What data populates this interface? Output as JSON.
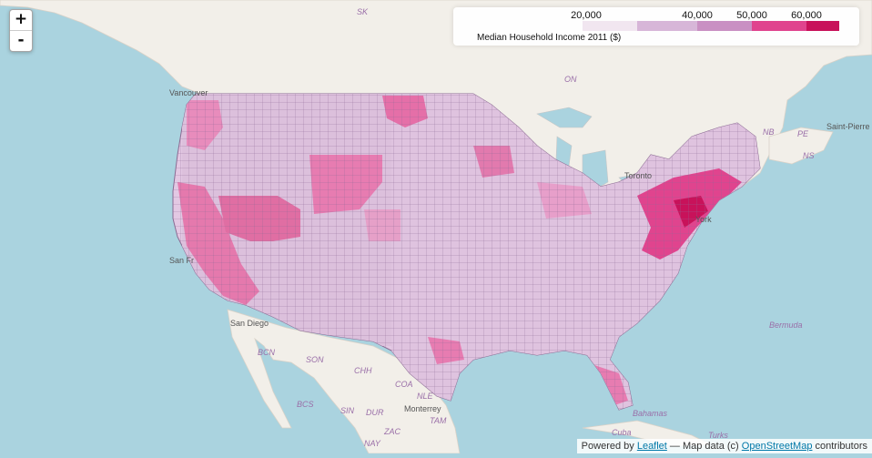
{
  "map": {
    "labels": {
      "sk": "SK",
      "on": "ON",
      "nb": "NB",
      "pe": "PE",
      "ns": "NS",
      "saint_pierre": "Saint-Pierre",
      "bcn": "BCN",
      "son": "SON",
      "chh": "CHH",
      "coa": "COA",
      "nle": "NLE",
      "bcs": "BCS",
      "sin": "SIN",
      "dur": "DUR",
      "tam": "TAM",
      "zac": "ZAC",
      "nay": "NAY",
      "bermuda": "Bermuda",
      "bahamas": "Bahamas",
      "cuba": "Cuba",
      "turks": "Turks",
      "san_diego": "San Diego",
      "san_fr": "San Fr",
      "monterrey": "Monterrey",
      "toronto": "Toronto",
      "york": "York",
      "vancouver": "Vancouver"
    }
  },
  "colors": {
    "ocean": "#aad3df",
    "land": "#f2efe9",
    "border": "#b59bc6",
    "bin_1": "#f1e6f0",
    "bin_2": "#d7b6d8",
    "bin_3": "#c990c3",
    "bin_4": "#e0448e",
    "bin_5": "#c8125a"
  },
  "legend": {
    "title": "Median Household Income 2011 ($)",
    "ticks": [
      "20,000",
      "40,000",
      "50,000",
      "60,000"
    ]
  },
  "zoom": {
    "in_label": "+",
    "out_label": "-"
  },
  "attribution": {
    "prefix": "Powered by",
    "leaflet": "Leaflet",
    "middle": "— Map data (c)",
    "osm": "OpenStreetMap",
    "suffix": "contributors"
  }
}
